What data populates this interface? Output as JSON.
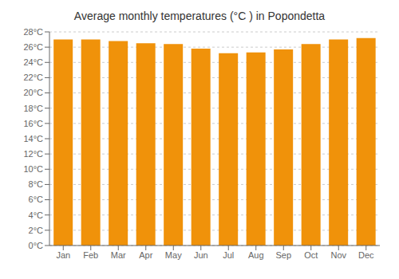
{
  "chart_data": {
    "type": "bar",
    "title": "Average monthly temperatures (°C ) in Popondetta",
    "categories": [
      "Jan",
      "Feb",
      "Mar",
      "Apr",
      "May",
      "Jun",
      "Jul",
      "Aug",
      "Sep",
      "Oct",
      "Nov",
      "Dec"
    ],
    "values": [
      27.0,
      27.0,
      26.8,
      26.5,
      26.4,
      25.8,
      25.2,
      25.3,
      25.7,
      26.4,
      27.0,
      27.2
    ],
    "color": "#F0920A",
    "ylim": [
      0,
      28
    ],
    "yticks": [
      {
        "value": 0,
        "label": "0°C"
      },
      {
        "value": 2,
        "label": "2°C"
      },
      {
        "value": 4,
        "label": "4°C"
      },
      {
        "value": 6,
        "label": "6°C"
      },
      {
        "value": 8,
        "label": "8°C"
      },
      {
        "value": 10,
        "label": "10°C"
      },
      {
        "value": 12,
        "label": "12°C"
      },
      {
        "value": 14,
        "label": "14°C"
      },
      {
        "value": 16,
        "label": "16°C"
      },
      {
        "value": 18,
        "label": "18°C"
      },
      {
        "value": 20,
        "label": "20°C"
      },
      {
        "value": 22,
        "label": "22°C"
      },
      {
        "value": 24,
        "label": "24°C"
      },
      {
        "value": 26,
        "label": "26°C"
      },
      {
        "value": 28,
        "label": "28°C"
      }
    ],
    "grid": true
  }
}
